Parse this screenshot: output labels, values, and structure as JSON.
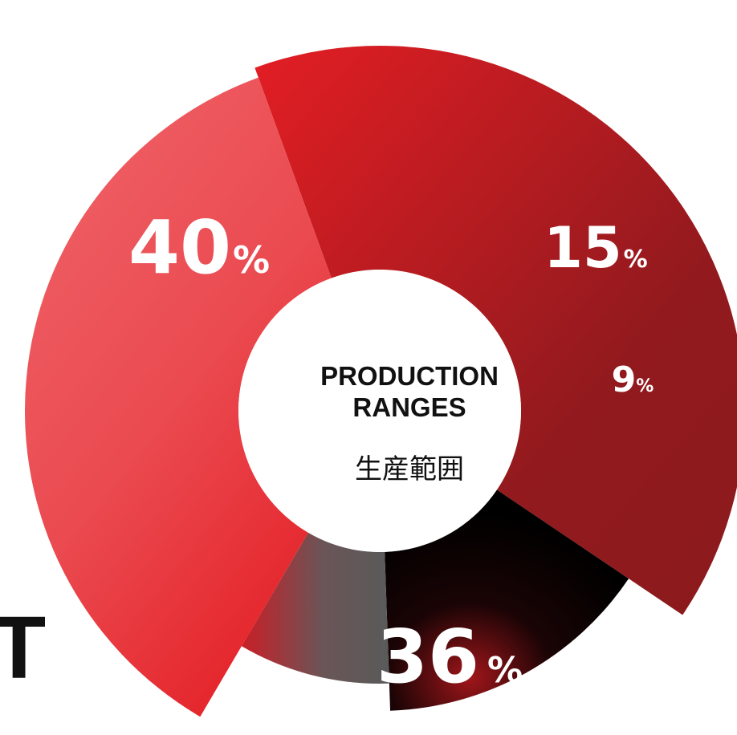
{
  "chart_data": {
    "type": "pie",
    "title": "PRODUCTION RANGES",
    "subtitle": "生産範囲",
    "slices": [
      {
        "value": 40,
        "label": "40",
        "unit": "%",
        "color_start": "#e31e24",
        "color_end": "#8b1a1d"
      },
      {
        "value": 15,
        "label": "15",
        "unit": "%",
        "color_start": "#000000",
        "color_end": "#a0161a"
      },
      {
        "value": 9,
        "label": "9",
        "unit": "%",
        "color_start": "#5a5a5a",
        "color_end": "#c91f26"
      },
      {
        "value": 36,
        "label": "36",
        "unit": "%",
        "color_start": "#ef6166",
        "color_end": "#e31e24"
      }
    ]
  },
  "edge_text": "T"
}
